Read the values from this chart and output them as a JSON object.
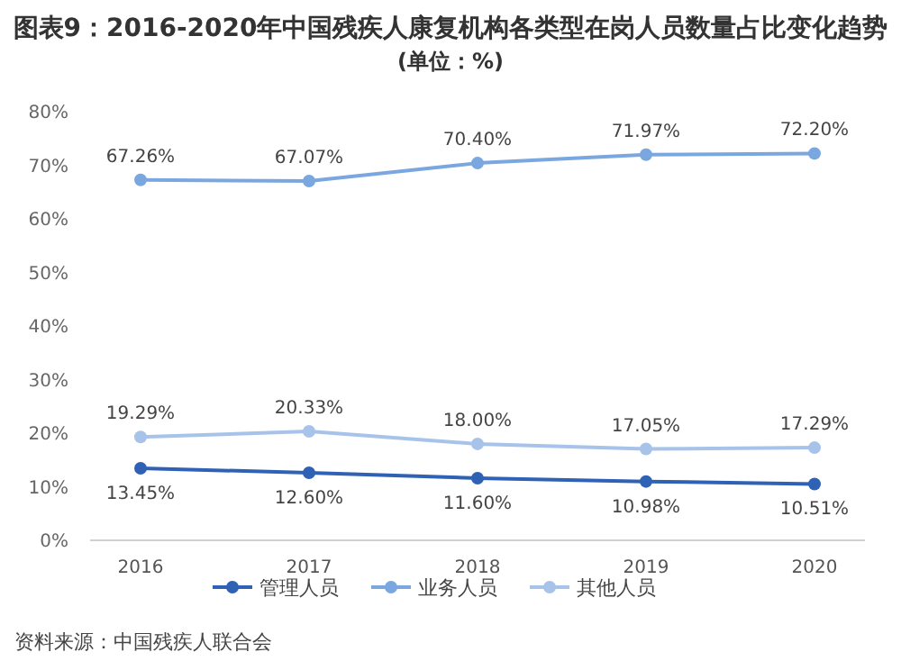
{
  "chart_data": {
    "type": "line",
    "title": "图表9：2016-2020年中国残疾人康复机构各类型在岗人员数量占比变化趋势",
    "subtitle": "(单位：%)",
    "categories": [
      "2016",
      "2017",
      "2018",
      "2019",
      "2020"
    ],
    "series": [
      {
        "name": "管理人员",
        "color": "#2f62b4",
        "values": [
          13.45,
          12.6,
          11.6,
          10.98,
          10.51
        ],
        "value_labels": [
          "13.45%",
          "12.60%",
          "11.60%",
          "10.98%",
          "10.51%"
        ]
      },
      {
        "name": "业务人员",
        "color": "#7ba7e0",
        "values": [
          67.26,
          67.07,
          70.4,
          71.97,
          72.2
        ],
        "value_labels": [
          "67.26%",
          "67.07%",
          "70.40%",
          "71.97%",
          "72.20%"
        ]
      },
      {
        "name": "其他人员",
        "color": "#a8c3ea",
        "values": [
          19.29,
          20.33,
          18.0,
          17.05,
          17.29
        ],
        "value_labels": [
          "19.29%",
          "20.33%",
          "18.00%",
          "17.05%",
          "17.29%"
        ]
      }
    ],
    "ylim": [
      0,
      80
    ],
    "yticks": [
      {
        "value": 0,
        "label": "0%"
      },
      {
        "value": 10,
        "label": "10%"
      },
      {
        "value": 20,
        "label": "20%"
      },
      {
        "value": 30,
        "label": "30%"
      },
      {
        "value": 40,
        "label": "40%"
      },
      {
        "value": 50,
        "label": "50%"
      },
      {
        "value": 60,
        "label": "60%"
      },
      {
        "value": 70,
        "label": "70%"
      },
      {
        "value": 80,
        "label": "80%"
      }
    ],
    "marker": "circle",
    "legend": "bottom",
    "annotations": [
      "资料来源：中国残疾人联合会"
    ]
  }
}
